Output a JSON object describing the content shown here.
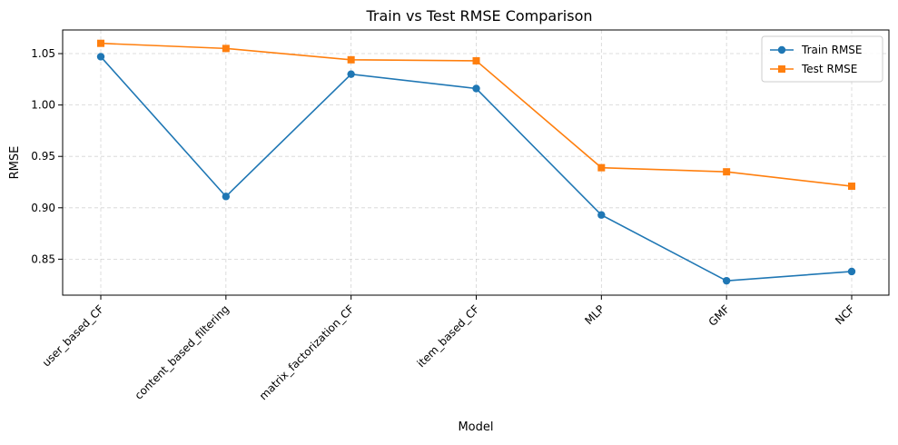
{
  "chart_data": {
    "type": "line",
    "title": "Train vs Test RMSE Comparison",
    "xlabel": "Model",
    "ylabel": "RMSE",
    "categories": [
      "user_based_CF",
      "content_based_filtering",
      "matrix_factorization_CF",
      "item_based_CF",
      "MLP",
      "GMF",
      "NCF"
    ],
    "ylim": [
      0.815,
      1.073
    ],
    "yticks": [
      0.85,
      0.9,
      0.95,
      1.0,
      1.05
    ],
    "ytick_labels": [
      "0.85",
      "0.90",
      "0.95",
      "1.00",
      "1.05"
    ],
    "grid": true,
    "legend_position": "upper right",
    "series": [
      {
        "name": "Train RMSE",
        "color": "#1f77b4",
        "marker": "circle",
        "values": [
          1.047,
          0.911,
          1.03,
          1.016,
          0.893,
          0.829,
          0.838
        ]
      },
      {
        "name": "Test RMSE",
        "color": "#ff7f0e",
        "marker": "square",
        "values": [
          1.06,
          1.055,
          1.044,
          1.043,
          0.939,
          0.935,
          0.921
        ]
      }
    ]
  }
}
